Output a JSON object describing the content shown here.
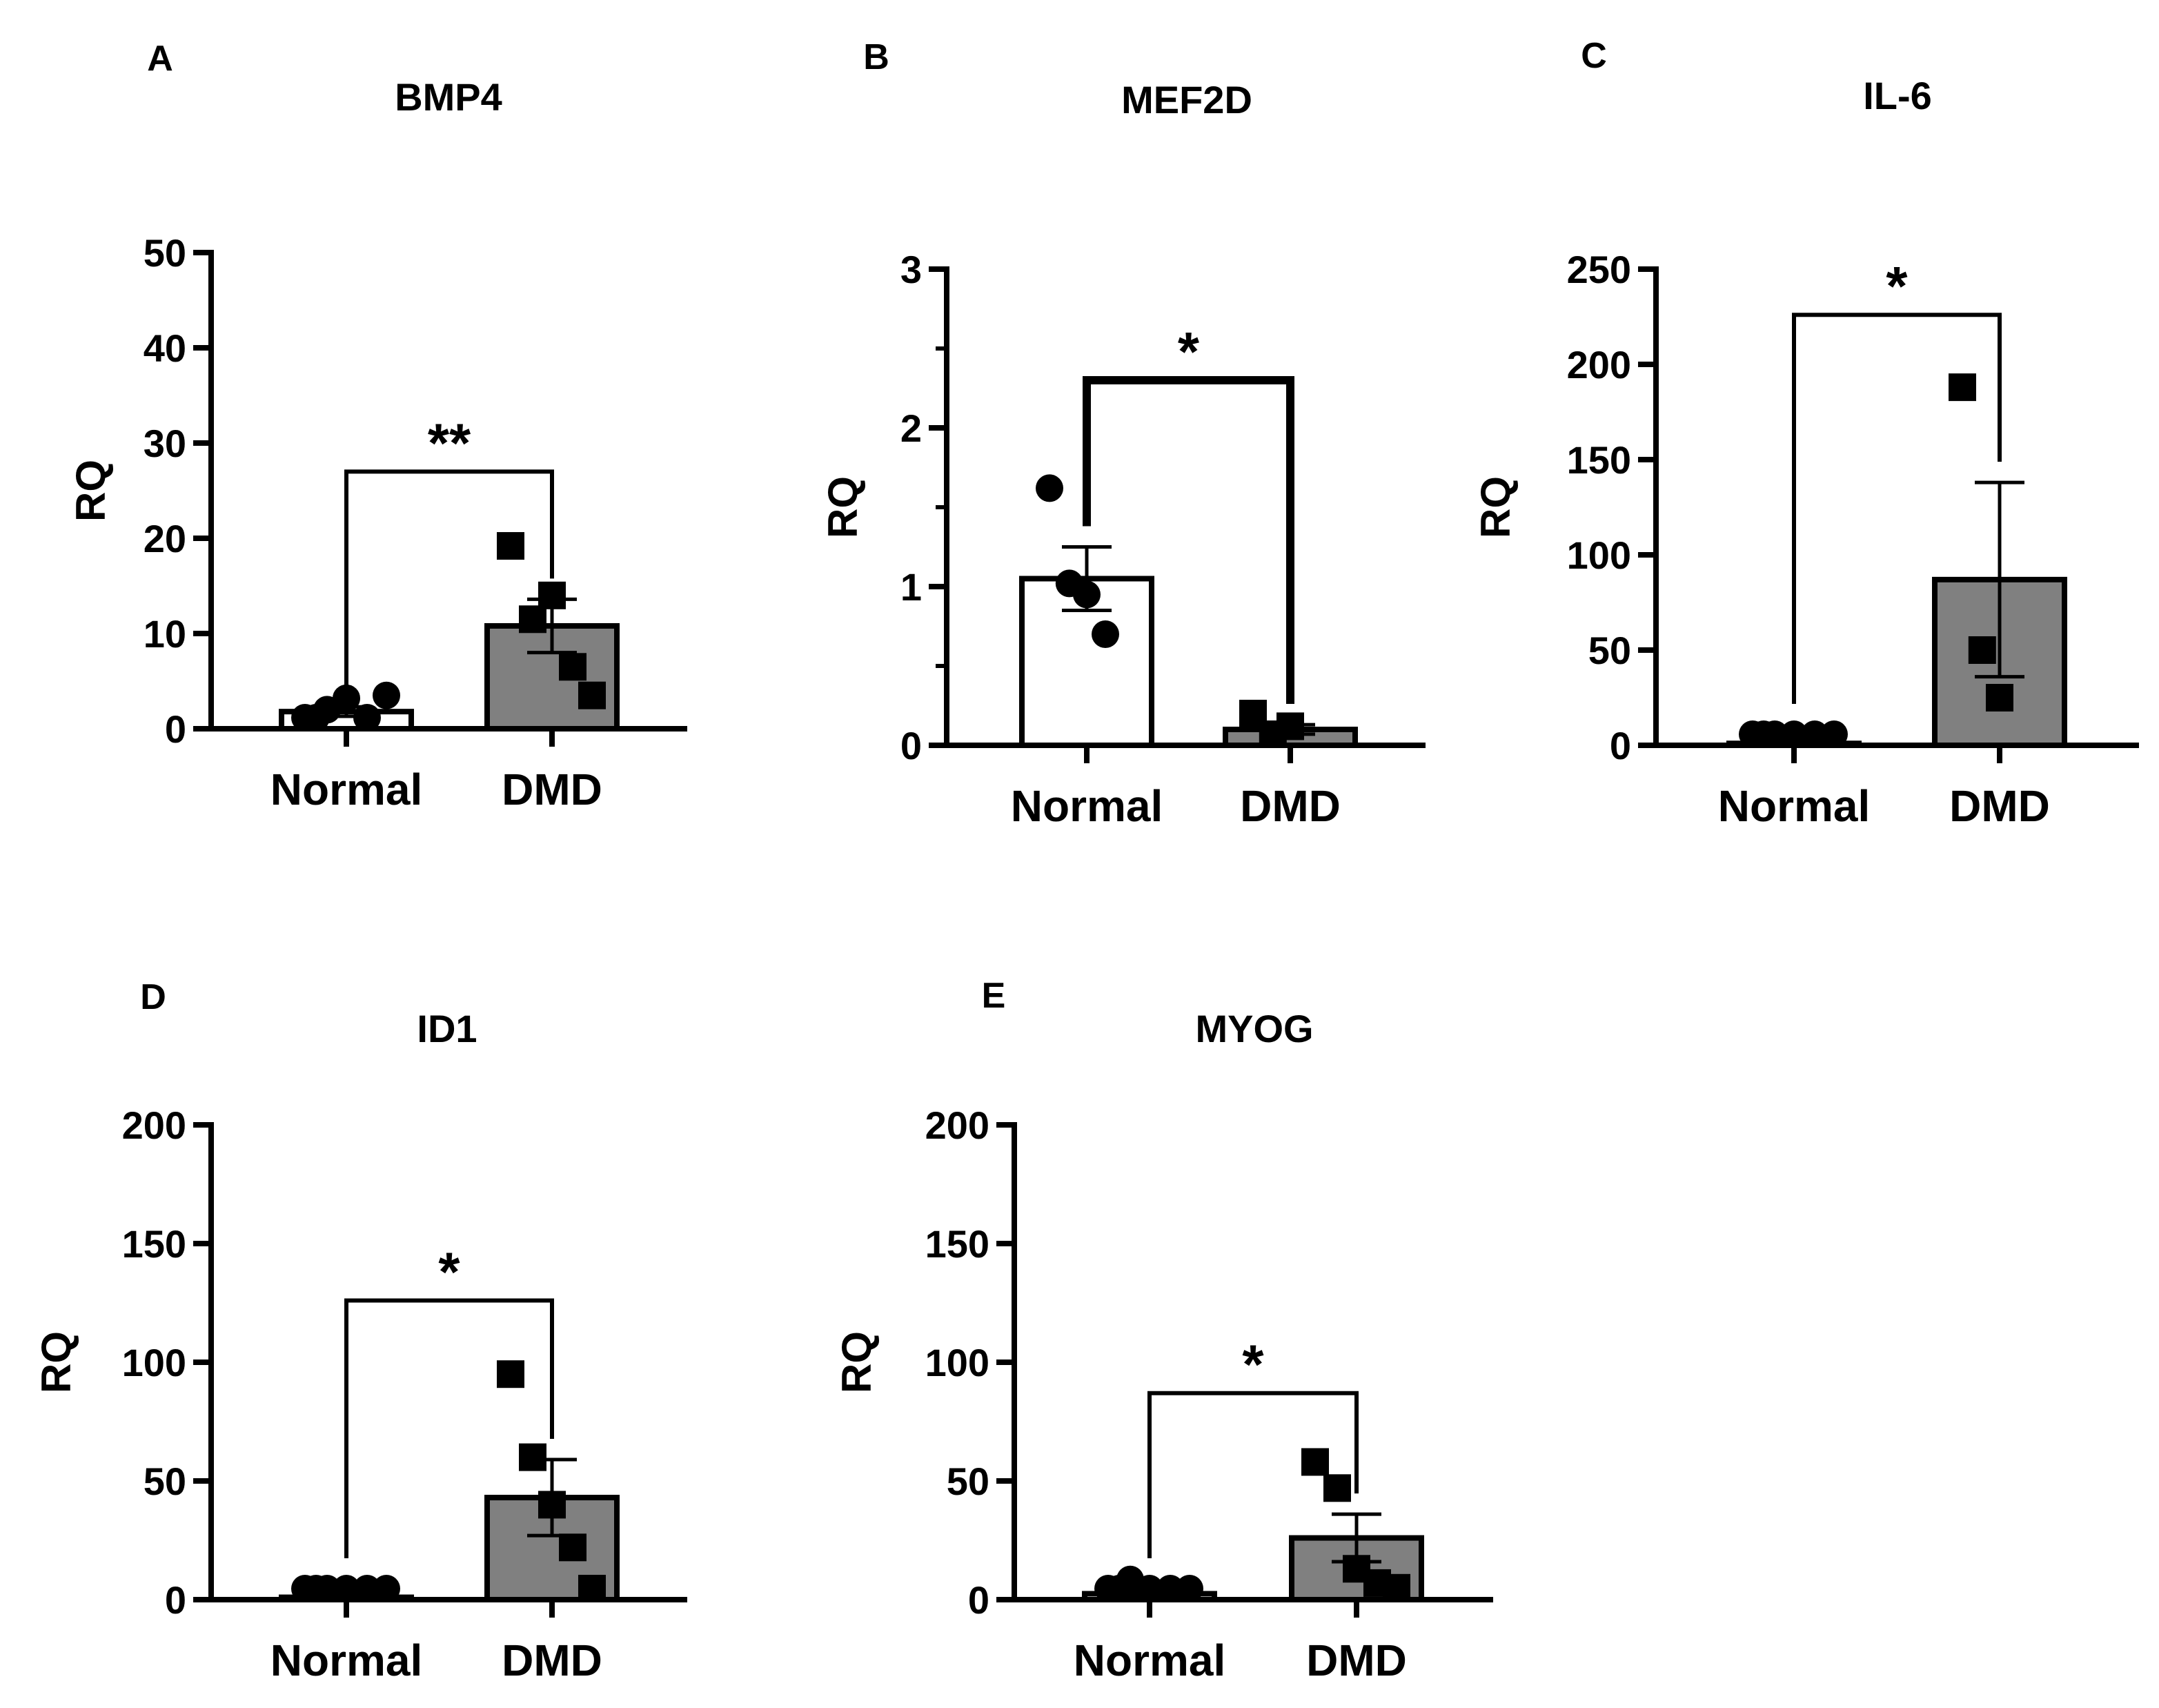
{
  "figure": {
    "background": "#ffffff",
    "ink": "#000000",
    "fill_normal": "#ffffff",
    "fill_dmd": "#808080"
  },
  "chart_data": [
    {
      "panel": "A",
      "type": "bar",
      "title": "BMP4",
      "ylabel": "RQ",
      "xlabel": "",
      "categories": [
        "Normal",
        "DMD"
      ],
      "ylim": [
        0,
        50
      ],
      "yticks": [
        0,
        10,
        20,
        30,
        40,
        50
      ],
      "minor_ticks": [],
      "series": [
        {
          "name": "Normal",
          "mean": 1.8,
          "sem": 0.5,
          "points": [
            1.0,
            2.0,
            3.2,
            0.8,
            3.5,
            1.0
          ],
          "marker": "circle"
        },
        {
          "name": "DMD",
          "mean": 10.8,
          "sem": 2.8,
          "points": [
            19.2,
            11.5,
            14.0,
            6.5,
            3.5
          ],
          "marker": "square"
        }
      ],
      "significance": {
        "label": "**",
        "bracket_y": 27
      }
    },
    {
      "panel": "B",
      "type": "bar",
      "title": "MEF2D",
      "ylabel": "RQ",
      "xlabel": "",
      "categories": [
        "Normal",
        "DMD"
      ],
      "ylim": [
        0,
        3
      ],
      "yticks": [
        0,
        1,
        2,
        3
      ],
      "minor_ticks": [
        0.5,
        1.5,
        2.5
      ],
      "series": [
        {
          "name": "Normal",
          "mean": 1.05,
          "sem": 0.2,
          "points": [
            1.62,
            1.02,
            0.95,
            0.7
          ],
          "marker": "circle"
        },
        {
          "name": "DMD",
          "mean": 0.1,
          "sem": 0.03,
          "points": [
            0.2,
            0.05,
            0.12
          ],
          "marker": "square"
        }
      ],
      "significance": {
        "label": "*",
        "bracket_y": 2.3
      }
    },
    {
      "panel": "C",
      "type": "bar",
      "title": "IL-6",
      "ylabel": "RQ",
      "xlabel": "",
      "categories": [
        "Normal",
        "DMD"
      ],
      "ylim": [
        0,
        250
      ],
      "yticks": [
        0,
        50,
        100,
        150,
        200,
        250
      ],
      "minor_ticks": [],
      "series": [
        {
          "name": "Normal",
          "mean": 1.0,
          "sem": 0.3,
          "points": [
            1.5,
            2.0,
            1.0,
            0.5,
            1.0,
            0.8
          ],
          "marker": "circle"
        },
        {
          "name": "DMD",
          "mean": 87,
          "sem": 51,
          "points": [
            188,
            50,
            25
          ],
          "marker": "square"
        }
      ],
      "significance": {
        "label": "*",
        "bracket_y": 226
      }
    },
    {
      "panel": "D",
      "type": "bar",
      "title": "ID1",
      "ylabel": "RQ",
      "xlabel": "",
      "categories": [
        "Normal",
        "DMD"
      ],
      "ylim": [
        0,
        200
      ],
      "yticks": [
        0,
        50,
        100,
        150,
        200
      ],
      "minor_ticks": [],
      "series": [
        {
          "name": "Normal",
          "mean": 1.0,
          "sem": 0.3,
          "points": [
            1.0,
            3.0,
            1.5,
            0.5,
            1.5,
            0.8
          ],
          "marker": "circle"
        },
        {
          "name": "DMD",
          "mean": 43,
          "sem": 16,
          "points": [
            95,
            60,
            40,
            22,
            3
          ],
          "marker": "square"
        }
      ],
      "significance": {
        "label": "*",
        "bracket_y": 126
      }
    },
    {
      "panel": "E",
      "type": "bar",
      "title": "MYOG",
      "ylabel": "RQ",
      "xlabel": "",
      "categories": [
        "Normal",
        "DMD"
      ],
      "ylim": [
        0,
        200
      ],
      "yticks": [
        0,
        50,
        100,
        150,
        200
      ],
      "minor_ticks": [],
      "series": [
        {
          "name": "Normal",
          "mean": 2.5,
          "sem": 1.0,
          "points": [
            2.0,
            8.5,
            3.5,
            1.5,
            0.5,
            0.5
          ],
          "marker": "circle"
        },
        {
          "name": "DMD",
          "mean": 26,
          "sem": 10,
          "points": [
            58,
            47,
            13,
            7,
            5
          ],
          "marker": "square"
        }
      ],
      "significance": {
        "label": "*",
        "bracket_y": 87
      }
    }
  ]
}
